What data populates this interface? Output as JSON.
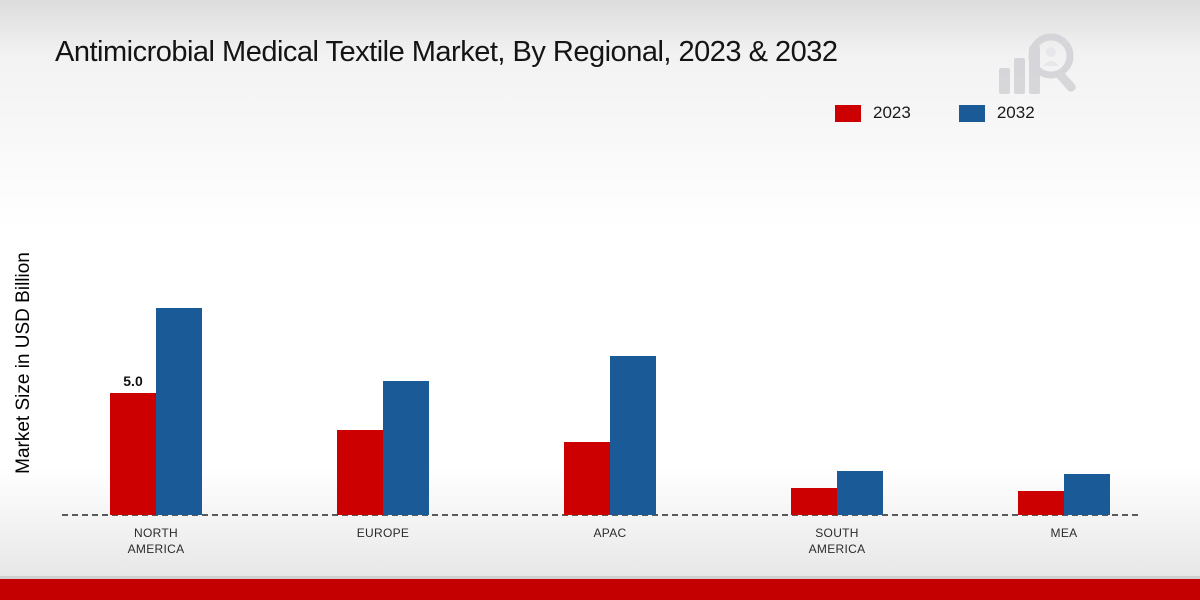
{
  "title": "Antimicrobial Medical Textile Market, By Regional, 2023 & 2032",
  "ylabel": "Market Size in USD Billion",
  "colors": {
    "series_2023": "#cc0000",
    "series_2032": "#1a5a96",
    "footer": "#c40000"
  },
  "chart_data": {
    "type": "bar",
    "title": "Antimicrobial Medical Textile Market, By Regional, 2023 & 2032",
    "ylabel": "Market Size in USD Billion",
    "xlabel": "",
    "categories": [
      "NORTH AMERICA",
      "EUROPE",
      "APAC",
      "SOUTH AMERICA",
      "MEA"
    ],
    "series": [
      {
        "name": "2023",
        "color": "#cc0000",
        "values": [
          5.0,
          3.5,
          3.0,
          1.1,
          1.0
        ]
      },
      {
        "name": "2032",
        "color": "#1a5a96",
        "values": [
          8.5,
          5.5,
          6.5,
          1.8,
          1.7
        ]
      }
    ],
    "ylim": [
      0,
      10
    ],
    "grid": false,
    "legend_position": "top-right",
    "annotations": [
      {
        "series_index": 0,
        "category_index": 0,
        "text": "5.0"
      }
    ]
  }
}
